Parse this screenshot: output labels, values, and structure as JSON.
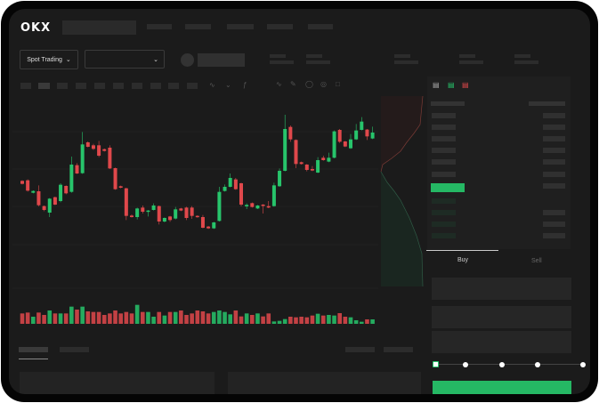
{
  "header": {
    "logo": "OKX",
    "mode_selector": "Spot Trading"
  },
  "order_form": {
    "tabs": [
      "Buy",
      "Sell"
    ],
    "active_tab": "Buy",
    "slider_percent": 0,
    "submit_color": "#25b864"
  },
  "colors": {
    "up": "#27c46b",
    "down": "#e0484b",
    "background": "#1b1b1b"
  },
  "chart_data": {
    "type": "candlestick",
    "grid": true,
    "candles": [
      [
        170,
        160,
        172,
        158
      ],
      [
        172,
        137,
        175,
        134
      ],
      [
        130,
        136,
        138,
        128
      ],
      [
        135,
        88,
        155,
        84
      ],
      [
        85,
        72,
        87,
        68
      ],
      [
        63,
        110,
        112,
        48
      ],
      [
        115,
        90,
        117,
        88
      ],
      [
        102,
        157,
        162,
        98
      ],
      [
        153,
        128,
        155,
        125
      ],
      [
        133,
        225,
        252,
        130
      ],
      [
        223,
        195,
        230,
        193
      ],
      [
        196,
        293,
        335,
        194
      ],
      [
        300,
        285,
        303,
        283
      ],
      [
        290,
        278,
        295,
        274
      ],
      [
        290,
        255,
        305,
        250
      ],
      [
        277,
        271,
        279,
        269
      ],
      [
        282,
        212,
        290,
        210
      ],
      [
        213,
        142,
        215,
        140
      ],
      [
        152,
        147,
        154,
        145
      ],
      [
        145,
        52,
        147,
        38
      ],
      [
        53,
        48,
        57,
        46
      ],
      [
        48,
        77,
        80,
        40
      ],
      [
        80,
        66,
        87,
        60
      ],
      [
        68,
        70,
        72,
        50
      ],
      [
        72,
        87,
        94,
        70
      ],
      [
        85,
        33,
        87,
        23
      ],
      [
        33,
        45,
        47,
        30
      ],
      [
        50,
        38,
        52,
        32
      ],
      [
        43,
        74,
        82,
        40
      ],
      [
        77,
        70,
        79,
        68
      ],
      [
        80,
        45,
        83,
        38
      ],
      [
        80,
        52,
        85,
        42
      ],
      [
        52,
        48,
        54,
        46
      ],
      [
        48,
        12,
        55,
        10
      ],
      [
        16,
        10,
        18,
        8
      ],
      [
        10,
        30,
        32,
        8
      ],
      [
        35,
        133,
        150,
        33
      ],
      [
        136,
        150,
        158,
        134
      ],
      [
        150,
        180,
        195,
        148
      ],
      [
        175,
        142,
        180,
        140
      ],
      [
        162,
        90,
        164,
        84
      ],
      [
        84,
        89,
        94,
        75
      ],
      [
        95,
        82,
        97,
        80
      ],
      [
        77,
        87,
        89,
        75
      ],
      [
        90,
        87,
        92,
        60
      ],
      [
        85,
        80,
        102,
        78
      ],
      [
        85,
        155,
        164,
        83
      ],
      [
        152,
        204,
        212,
        150
      ],
      [
        204,
        345,
        393,
        202
      ],
      [
        352,
        310,
        357,
        302
      ],
      [
        308,
        227,
        310,
        213
      ],
      [
        233,
        227,
        235,
        225
      ],
      [
        225,
        207,
        227,
        202
      ],
      [
        210,
        205,
        220,
        203
      ],
      [
        198,
        240,
        250,
        196
      ],
      [
        248,
        240,
        255,
        238
      ],
      [
        235,
        248,
        265,
        233
      ],
      [
        248,
        337,
        340,
        246
      ],
      [
        342,
        302,
        345,
        298
      ],
      [
        303,
        286,
        305,
        284
      ],
      [
        280,
        310,
        328,
        278
      ],
      [
        310,
        340,
        362,
        308
      ],
      [
        342,
        370,
        385,
        340
      ],
      [
        343,
        320,
        345,
        308
      ],
      [
        313,
        333,
        353,
        311
      ]
    ],
    "volume": [
      35,
      38,
      24,
      38,
      30,
      45,
      35,
      35,
      35,
      58,
      48,
      58,
      42,
      40,
      40,
      30,
      35,
      45,
      35,
      40,
      35,
      64,
      40,
      40,
      24,
      40,
      28,
      40,
      40,
      45,
      30,
      35,
      45,
      42,
      35,
      40,
      45,
      40,
      32,
      45,
      25,
      35,
      30,
      35,
      25,
      35,
      8,
      10,
      16,
      24,
      22,
      24,
      22,
      28,
      34,
      28,
      30,
      28,
      36,
      24,
      22,
      12,
      7,
      15,
      15
    ]
  }
}
